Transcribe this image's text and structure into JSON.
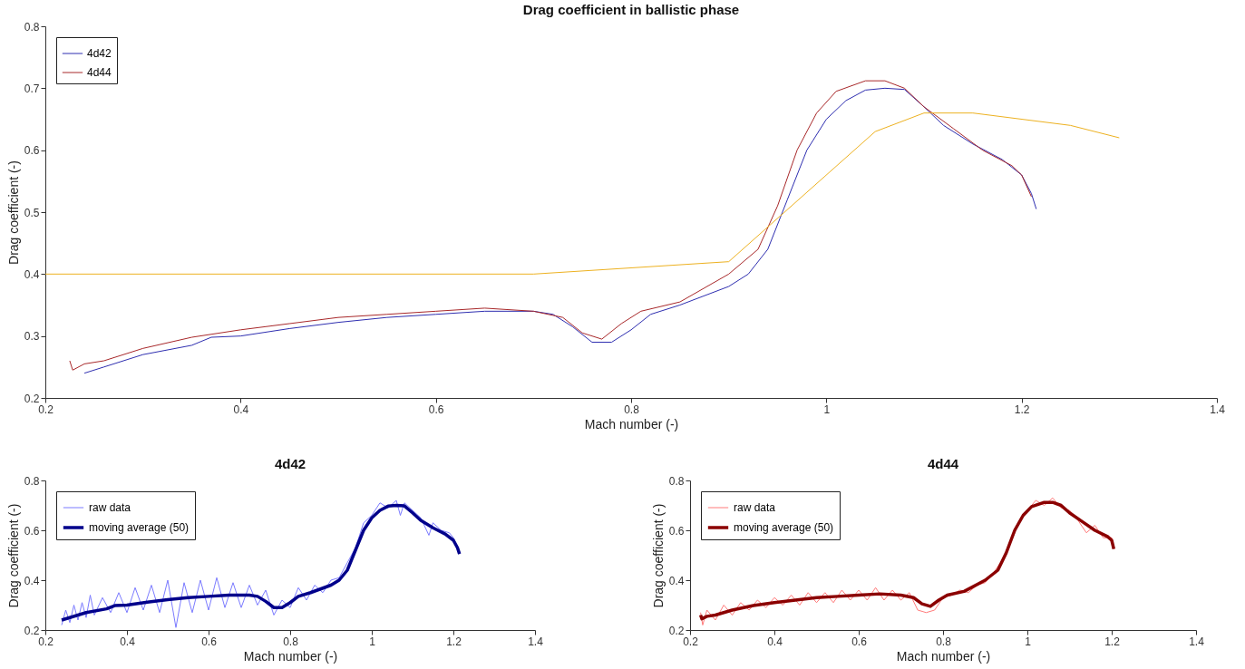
{
  "chart_data": [
    {
      "type": "line",
      "title": "Drag coefficient in ballistic phase",
      "xlabel": "Mach number (-)",
      "ylabel": "Drag coefficient (-)",
      "xlim": [
        0.2,
        1.4
      ],
      "xticks": [
        0.2,
        0.4,
        0.6,
        0.8,
        1,
        1.2,
        1.4
      ],
      "ylim": [
        0.2,
        0.8
      ],
      "yticks": [
        0.2,
        0.3,
        0.4,
        0.5,
        0.6,
        0.7,
        0.8
      ],
      "legend": "top left",
      "series": [
        {
          "name": "4d42",
          "color": "#2e2eb0",
          "x": [
            0.24,
            0.26,
            0.3,
            0.35,
            0.37,
            0.4,
            0.45,
            0.5,
            0.55,
            0.6,
            0.65,
            0.7,
            0.72,
            0.74,
            0.76,
            0.78,
            0.8,
            0.82,
            0.85,
            0.9,
            0.92,
            0.94,
            0.96,
            0.98,
            1.0,
            1.02,
            1.04,
            1.06,
            1.08,
            1.1,
            1.12,
            1.15,
            1.18,
            1.2,
            1.21,
            1.215
          ],
          "values": [
            0.24,
            0.25,
            0.27,
            0.285,
            0.298,
            0.3,
            0.312,
            0.322,
            0.33,
            0.335,
            0.34,
            0.34,
            0.335,
            0.315,
            0.29,
            0.29,
            0.31,
            0.335,
            0.35,
            0.38,
            0.4,
            0.44,
            0.52,
            0.6,
            0.65,
            0.68,
            0.697,
            0.7,
            0.698,
            0.67,
            0.64,
            0.61,
            0.585,
            0.56,
            0.53,
            0.505
          ]
        },
        {
          "name": "4d44",
          "color": "#a8282a",
          "x": [
            0.225,
            0.228,
            0.24,
            0.26,
            0.3,
            0.35,
            0.4,
            0.45,
            0.5,
            0.55,
            0.6,
            0.65,
            0.7,
            0.73,
            0.75,
            0.77,
            0.79,
            0.81,
            0.85,
            0.9,
            0.93,
            0.95,
            0.97,
            0.99,
            1.01,
            1.04,
            1.06,
            1.08,
            1.1,
            1.13,
            1.16,
            1.19,
            1.2,
            1.21
          ],
          "values": [
            0.26,
            0.245,
            0.255,
            0.26,
            0.28,
            0.298,
            0.31,
            0.32,
            0.33,
            0.335,
            0.34,
            0.345,
            0.34,
            0.33,
            0.305,
            0.295,
            0.32,
            0.34,
            0.355,
            0.4,
            0.44,
            0.51,
            0.6,
            0.66,
            0.695,
            0.712,
            0.712,
            0.7,
            0.67,
            0.635,
            0.6,
            0.575,
            0.56,
            0.525
          ]
        },
        {
          "color": "#edb120",
          "x": [
            0.2,
            0.7,
            0.9,
            1.05,
            1.1,
            1.15,
            1.25,
            1.3
          ],
          "values": [
            0.4,
            0.4,
            0.42,
            0.63,
            0.66,
            0.66,
            0.64,
            0.62
          ]
        }
      ]
    },
    {
      "type": "line",
      "title": "4d42",
      "xlabel": "Mach number (-)",
      "ylabel": "Drag coefficient (-)",
      "xlim": [
        0.2,
        1.4
      ],
      "xticks": [
        0.2,
        0.4,
        0.6,
        0.8,
        1,
        1.2,
        1.4
      ],
      "ylim": [
        0.2,
        0.8
      ],
      "yticks": [
        0.2,
        0.4,
        0.6,
        0.8
      ],
      "legend": "top left",
      "series": [
        {
          "name": "raw data",
          "color": "#7b7bff",
          "x": [
            0.24,
            0.25,
            0.26,
            0.27,
            0.28,
            0.29,
            0.3,
            0.31,
            0.32,
            0.34,
            0.36,
            0.38,
            0.4,
            0.42,
            0.44,
            0.46,
            0.48,
            0.5,
            0.52,
            0.54,
            0.56,
            0.58,
            0.6,
            0.62,
            0.64,
            0.66,
            0.68,
            0.7,
            0.72,
            0.74,
            0.76,
            0.78,
            0.8,
            0.82,
            0.84,
            0.86,
            0.88,
            0.9,
            0.92,
            0.94,
            0.96,
            0.98,
            1.0,
            1.02,
            1.04,
            1.06,
            1.07,
            1.08,
            1.1,
            1.12,
            1.14,
            1.15,
            1.17,
            1.19,
            1.2,
            1.215
          ],
          "values": [
            0.22,
            0.28,
            0.23,
            0.3,
            0.24,
            0.31,
            0.25,
            0.34,
            0.26,
            0.33,
            0.27,
            0.35,
            0.27,
            0.37,
            0.28,
            0.38,
            0.27,
            0.4,
            0.21,
            0.39,
            0.27,
            0.4,
            0.28,
            0.41,
            0.29,
            0.39,
            0.29,
            0.38,
            0.3,
            0.36,
            0.26,
            0.32,
            0.29,
            0.37,
            0.32,
            0.38,
            0.35,
            0.4,
            0.41,
            0.47,
            0.53,
            0.63,
            0.66,
            0.71,
            0.69,
            0.72,
            0.66,
            0.71,
            0.68,
            0.65,
            0.58,
            0.63,
            0.6,
            0.59,
            0.57,
            0.51
          ]
        },
        {
          "name": "moving average (50)",
          "color": "#00008b",
          "x": [
            0.24,
            0.26,
            0.3,
            0.35,
            0.37,
            0.4,
            0.45,
            0.5,
            0.55,
            0.6,
            0.65,
            0.7,
            0.72,
            0.74,
            0.76,
            0.78,
            0.8,
            0.82,
            0.85,
            0.9,
            0.92,
            0.94,
            0.96,
            0.98,
            1.0,
            1.02,
            1.04,
            1.06,
            1.08,
            1.1,
            1.12,
            1.15,
            1.18,
            1.2,
            1.21,
            1.215
          ],
          "values": [
            0.24,
            0.25,
            0.27,
            0.285,
            0.298,
            0.3,
            0.312,
            0.322,
            0.33,
            0.335,
            0.34,
            0.34,
            0.335,
            0.315,
            0.29,
            0.29,
            0.31,
            0.335,
            0.35,
            0.38,
            0.4,
            0.44,
            0.52,
            0.6,
            0.65,
            0.68,
            0.697,
            0.7,
            0.698,
            0.67,
            0.64,
            0.61,
            0.585,
            0.56,
            0.53,
            0.505
          ]
        }
      ]
    },
    {
      "type": "line",
      "title": "4d44",
      "xlabel": "Mach number (-)",
      "ylabel": "Drag coefficient (-)",
      "xlim": [
        0.2,
        1.4
      ],
      "xticks": [
        0.2,
        0.4,
        0.6,
        0.8,
        1,
        1.2,
        1.4
      ],
      "ylim": [
        0.2,
        0.8
      ],
      "yticks": [
        0.2,
        0.4,
        0.6,
        0.8
      ],
      "legend": "top left",
      "series": [
        {
          "name": "raw data",
          "color": "#ff7b7b",
          "x": [
            0.225,
            0.23,
            0.24,
            0.26,
            0.28,
            0.3,
            0.32,
            0.34,
            0.36,
            0.38,
            0.4,
            0.42,
            0.44,
            0.46,
            0.48,
            0.5,
            0.52,
            0.54,
            0.56,
            0.58,
            0.6,
            0.62,
            0.64,
            0.66,
            0.68,
            0.7,
            0.72,
            0.74,
            0.76,
            0.78,
            0.8,
            0.82,
            0.84,
            0.86,
            0.88,
            0.9,
            0.92,
            0.94,
            0.96,
            0.98,
            1.0,
            1.02,
            1.04,
            1.06,
            1.08,
            1.1,
            1.12,
            1.14,
            1.16,
            1.18,
            1.2,
            1.205
          ],
          "values": [
            0.27,
            0.22,
            0.28,
            0.24,
            0.3,
            0.26,
            0.31,
            0.28,
            0.32,
            0.29,
            0.33,
            0.3,
            0.34,
            0.3,
            0.35,
            0.31,
            0.35,
            0.31,
            0.36,
            0.32,
            0.36,
            0.32,
            0.37,
            0.32,
            0.36,
            0.32,
            0.35,
            0.28,
            0.27,
            0.28,
            0.33,
            0.34,
            0.36,
            0.35,
            0.38,
            0.39,
            0.43,
            0.48,
            0.55,
            0.63,
            0.68,
            0.72,
            0.7,
            0.73,
            0.69,
            0.68,
            0.64,
            0.59,
            0.62,
            0.57,
            0.57,
            0.53
          ]
        },
        {
          "name": "moving average (50)",
          "color": "#8b0000",
          "x": [
            0.225,
            0.228,
            0.24,
            0.26,
            0.3,
            0.35,
            0.4,
            0.45,
            0.5,
            0.55,
            0.6,
            0.65,
            0.7,
            0.73,
            0.75,
            0.77,
            0.79,
            0.81,
            0.85,
            0.9,
            0.93,
            0.95,
            0.97,
            0.99,
            1.01,
            1.04,
            1.06,
            1.08,
            1.1,
            1.13,
            1.16,
            1.19,
            1.2,
            1.205
          ],
          "values": [
            0.26,
            0.245,
            0.255,
            0.26,
            0.28,
            0.298,
            0.31,
            0.32,
            0.33,
            0.335,
            0.34,
            0.345,
            0.34,
            0.33,
            0.305,
            0.295,
            0.32,
            0.34,
            0.355,
            0.4,
            0.44,
            0.51,
            0.6,
            0.66,
            0.695,
            0.712,
            0.712,
            0.7,
            0.67,
            0.635,
            0.6,
            0.575,
            0.56,
            0.525
          ]
        }
      ]
    }
  ]
}
